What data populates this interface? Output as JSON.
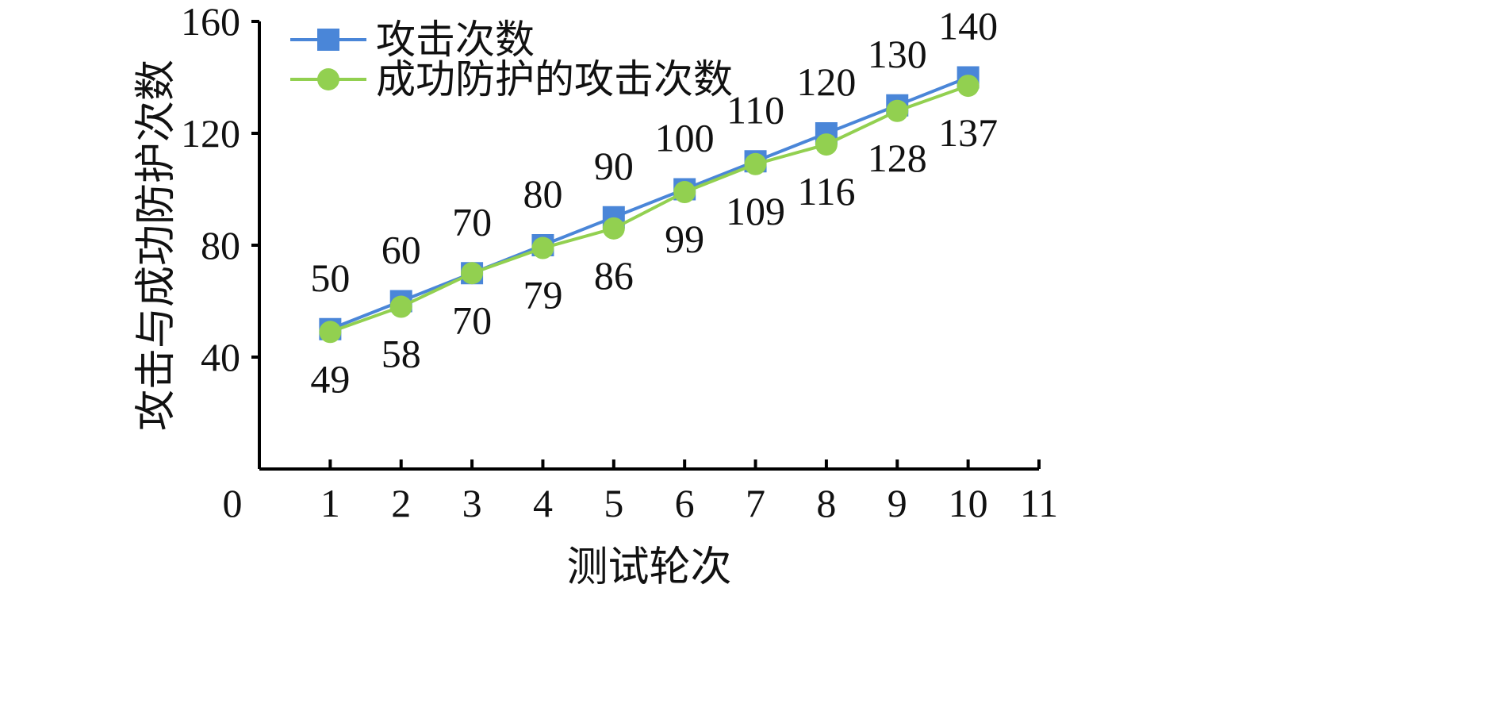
{
  "chart_data": {
    "type": "line",
    "title": "",
    "xlabel": "测试轮次",
    "ylabel": "攻击与成功防护次数",
    "xlim": [
      0,
      11
    ],
    "ylim": [
      0,
      160
    ],
    "x_ticks": [
      0,
      1,
      2,
      3,
      4,
      5,
      6,
      7,
      8,
      9,
      10,
      11
    ],
    "y_ticks": [
      40,
      80,
      120,
      160
    ],
    "grid": false,
    "legend_position": "top-left",
    "x": [
      1,
      2,
      3,
      4,
      5,
      6,
      7,
      8,
      9,
      10
    ],
    "series": [
      {
        "name": "攻击次数",
        "values": [
          50,
          60,
          70,
          80,
          90,
          100,
          110,
          120,
          130,
          140
        ],
        "color": "#4a86d8",
        "marker": "square",
        "label_side": "above"
      },
      {
        "name": "成功防护的攻击次数",
        "values": [
          49,
          58,
          70,
          79,
          86,
          99,
          109,
          116,
          128,
          137
        ],
        "color": "#92d050",
        "marker": "circle",
        "label_side": "below"
      }
    ]
  }
}
